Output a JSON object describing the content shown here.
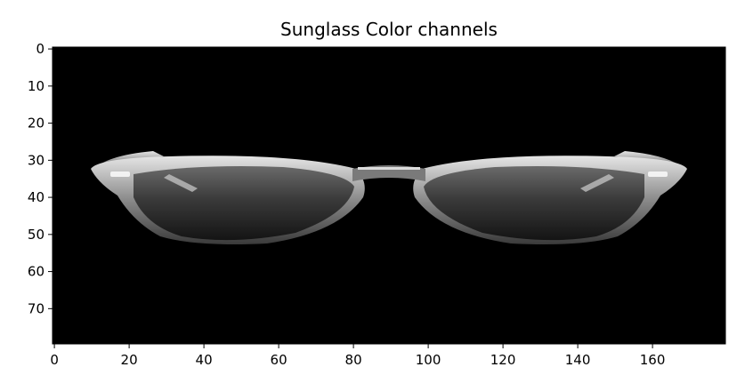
{
  "chart_data": {
    "type": "image",
    "title": "Sunglass Color channels",
    "xlabel": "",
    "ylabel": "",
    "image_shape": [
      80,
      180
    ],
    "xlim": [
      -0.5,
      179.5
    ],
    "ylim": [
      79.5,
      -0.5
    ],
    "xticks": [
      0,
      20,
      40,
      60,
      80,
      100,
      120,
      140,
      160
    ],
    "xtick_labels": [
      "0",
      "20",
      "40",
      "60",
      "80",
      "100",
      "120",
      "140",
      "160"
    ],
    "yticks": [
      0,
      10,
      20,
      30,
      40,
      50,
      60,
      70
    ],
    "ytick_labels": [
      "0",
      "10",
      "20",
      "30",
      "40",
      "50",
      "60",
      "70"
    ],
    "grid": false,
    "content": "sunglasses"
  },
  "colors": {
    "background": "#000000",
    "frame": "#9a9a9a",
    "frame_highlight": "#e6e6e6",
    "lens_top": "#6a6a6a",
    "lens_bottom": "#141414",
    "axis": "#000000",
    "text": "#000000"
  }
}
